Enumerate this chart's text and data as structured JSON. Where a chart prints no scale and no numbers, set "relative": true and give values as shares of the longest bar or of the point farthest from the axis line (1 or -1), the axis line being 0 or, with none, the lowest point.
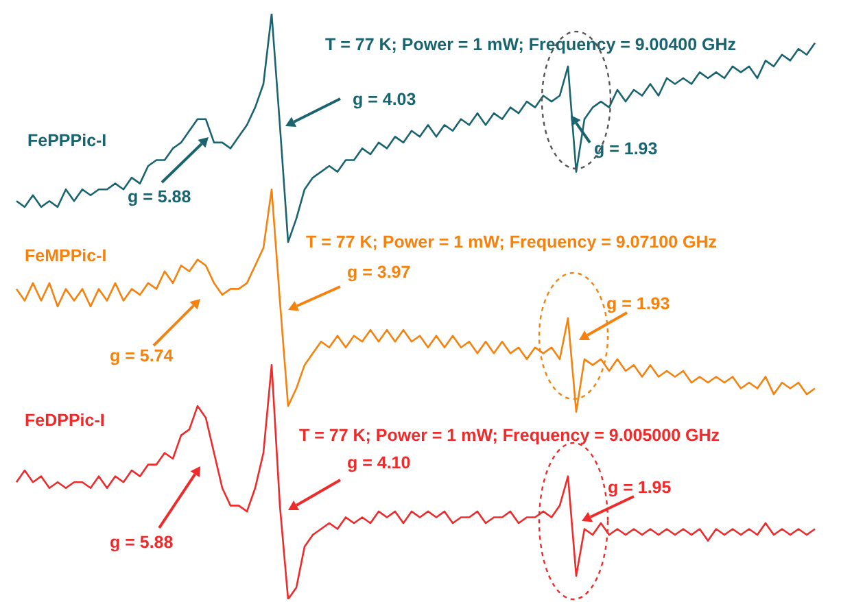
{
  "chart_data": {
    "type": "line",
    "relative": true,
    "categories": [
      null,
      null,
      null,
      null,
      null,
      null,
      null,
      null,
      null,
      null,
      null,
      null,
      null,
      null,
      null,
      null,
      null,
      null,
      null,
      null,
      null,
      null,
      null,
      null,
      null,
      null,
      null,
      null,
      null,
      null,
      null,
      null,
      null,
      null,
      null,
      null,
      null,
      null,
      null,
      null,
      null,
      null,
      null,
      null,
      null,
      null,
      null,
      null,
      null,
      null,
      null,
      null,
      null,
      null,
      null,
      null,
      null,
      null,
      null,
      null,
      null,
      null,
      null,
      null,
      null,
      null,
      null,
      null,
      null,
      null,
      null,
      null,
      null,
      null,
      null,
      null,
      null,
      null,
      null,
      null,
      null,
      null,
      null,
      null,
      null,
      null,
      null,
      null,
      null,
      null,
      null,
      null,
      null,
      null,
      null,
      null,
      null,
      null
    ],
    "series": [
      {
        "name": "FePPPic-I",
        "color": "#1a6470",
        "values": [
          0.68,
          0.67,
          0.69,
          0.67,
          0.68,
          0.67,
          0.7,
          0.68,
          0.7,
          0.69,
          0.7,
          0.7,
          0.71,
          0.7,
          0.72,
          0.71,
          0.74,
          0.75,
          0.75,
          0.77,
          0.78,
          0.8,
          0.82,
          0.82,
          0.78,
          0.78,
          0.77,
          0.79,
          0.81,
          0.84,
          0.88,
          1.0,
          0.81,
          0.61,
          0.65,
          0.7,
          0.72,
          0.73,
          0.74,
          0.73,
          0.75,
          0.75,
          0.77,
          0.76,
          0.78,
          0.77,
          0.79,
          0.78,
          0.8,
          0.79,
          0.81,
          0.79,
          0.81,
          0.8,
          0.82,
          0.81,
          0.83,
          0.81,
          0.83,
          0.82,
          0.84,
          0.83,
          0.85,
          0.84,
          0.86,
          0.85,
          0.86,
          0.91,
          0.73,
          0.82,
          0.84,
          0.85,
          0.84,
          0.87,
          0.85,
          0.87,
          0.86,
          0.88,
          0.86,
          0.89,
          0.88,
          0.89,
          0.88,
          0.9,
          0.89,
          0.9,
          0.89,
          0.91,
          0.9,
          0.91,
          0.89,
          0.92,
          0.91,
          0.93,
          0.92,
          0.94,
          0.93,
          0.95
        ]
      },
      {
        "name": "FeMPPic-I",
        "color": "#f5820f",
        "values": [
          0.53,
          0.51,
          0.54,
          0.51,
          0.54,
          0.5,
          0.53,
          0.51,
          0.53,
          0.5,
          0.53,
          0.51,
          0.54,
          0.51,
          0.53,
          0.52,
          0.54,
          0.53,
          0.56,
          0.54,
          0.57,
          0.56,
          0.58,
          0.57,
          0.54,
          0.52,
          0.53,
          0.53,
          0.54,
          0.57,
          0.6,
          0.7,
          0.51,
          0.33,
          0.36,
          0.4,
          0.42,
          0.44,
          0.43,
          0.45,
          0.43,
          0.45,
          0.44,
          0.46,
          0.44,
          0.46,
          0.44,
          0.46,
          0.44,
          0.45,
          0.43,
          0.45,
          0.43,
          0.45,
          0.43,
          0.44,
          0.42,
          0.44,
          0.42,
          0.44,
          0.42,
          0.43,
          0.41,
          0.43,
          0.42,
          0.43,
          0.41,
          0.48,
          0.32,
          0.41,
          0.4,
          0.41,
          0.39,
          0.41,
          0.39,
          0.4,
          0.38,
          0.4,
          0.38,
          0.39,
          0.38,
          0.39,
          0.37,
          0.38,
          0.37,
          0.38,
          0.37,
          0.38,
          0.36,
          0.37,
          0.36,
          0.38,
          0.35,
          0.37,
          0.36,
          0.37,
          0.35,
          0.36
        ]
      },
      {
        "name": "FeDPPic-I",
        "color": "#ee2a2a",
        "values": [
          0.2,
          0.22,
          0.2,
          0.21,
          0.19,
          0.2,
          0.19,
          0.2,
          0.2,
          0.19,
          0.21,
          0.19,
          0.21,
          0.2,
          0.22,
          0.21,
          0.23,
          0.23,
          0.25,
          0.24,
          0.28,
          0.29,
          0.33,
          0.31,
          0.25,
          0.19,
          0.16,
          0.16,
          0.15,
          0.19,
          0.25,
          0.4,
          0.16,
          0.0,
          0.02,
          0.09,
          0.11,
          0.12,
          0.13,
          0.12,
          0.14,
          0.13,
          0.14,
          0.13,
          0.15,
          0.14,
          0.15,
          0.13,
          0.15,
          0.14,
          0.15,
          0.14,
          0.15,
          0.13,
          0.14,
          0.14,
          0.15,
          0.13,
          0.14,
          0.14,
          0.15,
          0.13,
          0.14,
          0.14,
          0.15,
          0.14,
          0.16,
          0.21,
          0.04,
          0.12,
          0.11,
          0.13,
          0.11,
          0.12,
          0.11,
          0.12,
          0.11,
          0.12,
          0.11,
          0.12,
          0.11,
          0.12,
          0.11,
          0.12,
          0.1,
          0.12,
          0.11,
          0.12,
          0.11,
          0.12,
          0.11,
          0.13,
          0.11,
          0.12,
          0.11,
          0.12,
          0.11,
          0.12
        ]
      }
    ],
    "annotations": [
      "T = 77 K; Power = 1 mW; Frequency = 9.00400 GHz",
      "g = 4.03",
      "g = 5.88",
      "g = 1.93",
      "T = 77 K; Power = 1 mW; Frequency = 9.07100 GHz",
      "g = 3.97",
      "g = 5.74",
      "g = 1.93",
      "T = 77 K; Power = 1 mW; Frequency = 9.005000 GHz",
      "g = 4.10",
      "g = 5.88",
      "g = 1.95"
    ]
  }
}
